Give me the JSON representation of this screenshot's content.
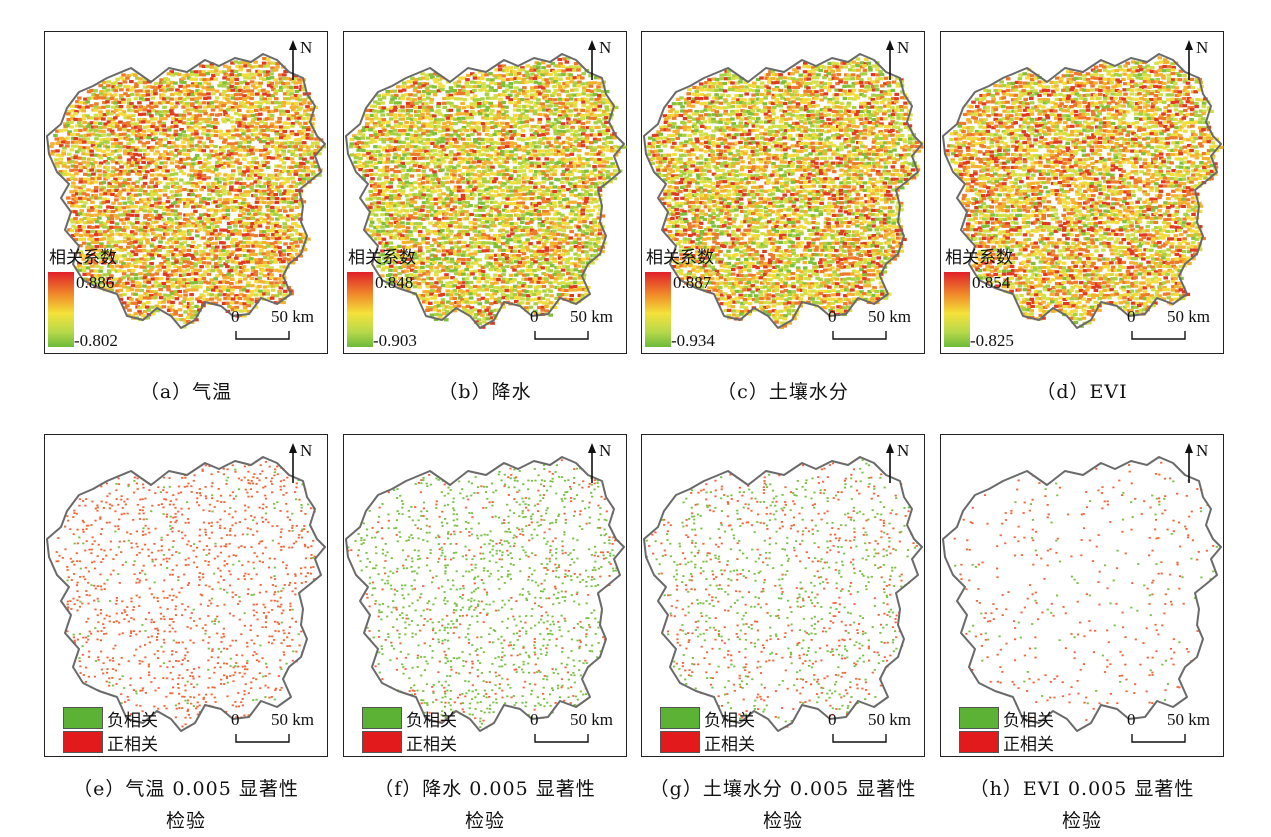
{
  "north_label": "N",
  "scale": {
    "zero": "0",
    "label": "50 km"
  },
  "colors": {
    "positive": "#e31a1c",
    "negative": "#5cb234",
    "ramp_high": "#e0202a",
    "ramp_low": "#6dba3a",
    "boundary": "#6a6a6a"
  },
  "corr_panels": [
    {
      "legend_title": "相关系数",
      "max": "0.886",
      "min": "-0.802",
      "caption": "（a）气温"
    },
    {
      "legend_title": "相关系数",
      "max": "0.848",
      "min": "-0.903",
      "caption": "（b）降水"
    },
    {
      "legend_title": "相关系数",
      "max": "0.887",
      "min": "-0.934",
      "caption": "（c）土壤水分"
    },
    {
      "legend_title": "相关系数",
      "max": "0.854",
      "min": "-0.825",
      "caption": "（d）EVI"
    }
  ],
  "sig_panels": [
    {
      "negative_label": "负相关",
      "positive_label": "正相关",
      "caption_line1": "（e）气温 0.005 显著性",
      "caption_line2": "检验"
    },
    {
      "negative_label": "负相关",
      "positive_label": "正相关",
      "caption_line1": "（f）降水 0.005 显著性",
      "caption_line2": "检验"
    },
    {
      "negative_label": "负相关",
      "positive_label": "正相关",
      "caption_line1": "（g）土壤水分 0.005 显著性",
      "caption_line2": "检验"
    },
    {
      "negative_label": "负相关",
      "positive_label": "正相关",
      "caption_line1": "（h）EVI 0.005 显著性",
      "caption_line2": "检验"
    }
  ]
}
